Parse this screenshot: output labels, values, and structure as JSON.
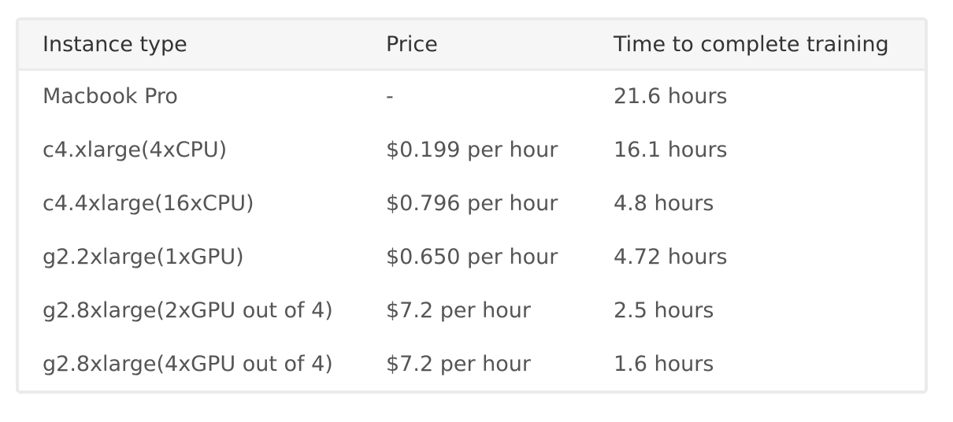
{
  "table": {
    "headers": [
      "Instance type",
      "Price",
      "Time to complete training"
    ],
    "rows": [
      [
        "Macbook Pro",
        "-",
        "21.6 hours"
      ],
      [
        "c4.xlarge(4xCPU)",
        "$0.199 per hour",
        "16.1 hours"
      ],
      [
        "c4.4xlarge(16xCPU)",
        "$0.796 per hour",
        "4.8 hours"
      ],
      [
        "g2.2xlarge(1xGPU)",
        "$0.650 per hour",
        "4.72 hours"
      ],
      [
        "g2.8xlarge(2xGPU out of 4)",
        "$7.2 per hour",
        "2.5 hours"
      ],
      [
        "g2.8xlarge(4xGPU out of 4)",
        "$7.2 per hour",
        "1.6 hours"
      ]
    ]
  }
}
